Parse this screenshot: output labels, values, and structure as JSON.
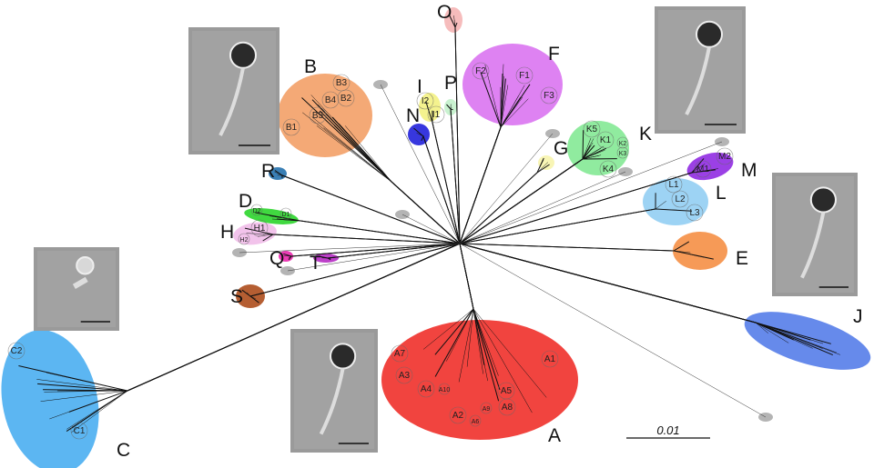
{
  "clusters": {
    "A": {
      "label": "A",
      "color": "#f03a35",
      "sub": [
        "A1",
        "A2",
        "A3",
        "A4",
        "A5",
        "A6",
        "A7",
        "A8",
        "A9",
        "A10"
      ]
    },
    "B": {
      "label": "B",
      "color": "#f29a5e",
      "sub": [
        "B1",
        "B2",
        "B3",
        "B4",
        "B5"
      ]
    },
    "C": {
      "label": "C",
      "color": "#3fa9f0",
      "sub": [
        "C1",
        "C2"
      ]
    },
    "D": {
      "label": "D",
      "color": "#1fd21f",
      "sub": [
        "D1",
        "D2"
      ]
    },
    "E": {
      "label": "E",
      "color": "#f5883a",
      "sub": []
    },
    "F": {
      "label": "F",
      "color": "#d86cf0",
      "sub": [
        "F1",
        "F2",
        "F3"
      ]
    },
    "G": {
      "label": "G",
      "color": "#f7f3a8",
      "sub": []
    },
    "H": {
      "label": "H",
      "color": "#f0b8e8",
      "sub": [
        "H1",
        "H2"
      ]
    },
    "I": {
      "label": "I",
      "color": "#f2f07a",
      "sub": [
        "I1",
        "I2"
      ]
    },
    "J": {
      "label": "J",
      "color": "#4b76e8",
      "sub": []
    },
    "K": {
      "label": "K",
      "color": "#7de88e",
      "sub": [
        "K1",
        "K2",
        "K3",
        "K4",
        "K5"
      ]
    },
    "L": {
      "label": "L",
      "color": "#8ccbf2",
      "sub": [
        "L1",
        "L2",
        "L3"
      ]
    },
    "M": {
      "label": "M",
      "color": "#8a1ee0",
      "sub": [
        "M1",
        "M2"
      ]
    },
    "N": {
      "label": "N",
      "color": "#1414d8",
      "sub": []
    },
    "O": {
      "label": "O",
      "color": "#f5b0b0",
      "sub": []
    },
    "P": {
      "label": "P",
      "color": "#bff0c8",
      "sub": []
    },
    "Q": {
      "label": "Q",
      "color": "#e81aa8",
      "sub": []
    },
    "R": {
      "label": "R",
      "color": "#1868a8",
      "sub": []
    },
    "S": {
      "label": "S",
      "color": "#a8420e",
      "sub": []
    },
    "T": {
      "label": "T",
      "color": "#b21ec0",
      "sub": []
    }
  },
  "singleton_color": "#b4b4b4",
  "scale_bar": {
    "label": "0.01"
  },
  "micrographs": [
    "phage-micrograph-1",
    "phage-micrograph-2",
    "phage-micrograph-3",
    "phage-micrograph-4",
    "phage-micrograph-5"
  ]
}
